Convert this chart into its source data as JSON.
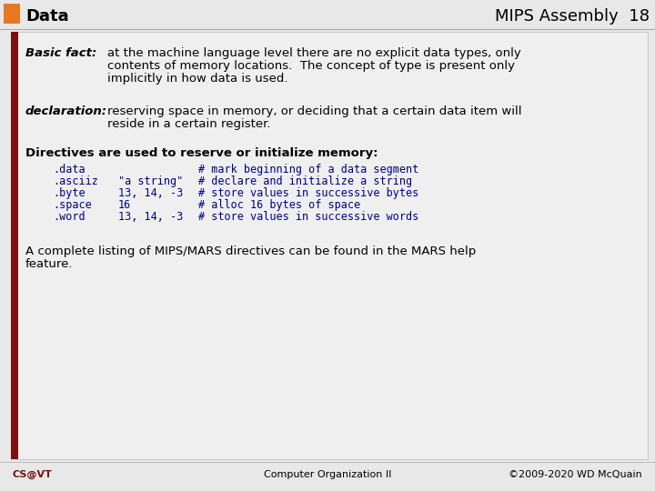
{
  "title_left": "Data",
  "title_right": "MIPS Assembly  18",
  "slide_bg": "#E8E8E8",
  "content_bg": "#F0F0F0",
  "white_box_bg": "#EFEFEF",
  "border_color": "#CCCCCC",
  "left_stripe_color": "#7A1010",
  "orange_square": "#E87722",
  "header_text_color": "#000000",
  "basic_fact_label": "Basic fact:",
  "basic_fact_text_line1": "at the machine language level there are no explicit data types, only",
  "basic_fact_text_line2": "contents of memory locations.  The concept of type is present only",
  "basic_fact_text_line3": "implicitly in how data is used.",
  "declaration_label": "declaration:",
  "declaration_text_line1": "reserving space in memory, or deciding that a certain data item will",
  "declaration_text_line2": "reside in a certain register.",
  "directives_heading": "Directives are used to reserve or initialize memory:",
  "code_color": "#000088",
  "code_lines": [
    [
      ".data",
      "",
      "# mark beginning of a data segment"
    ],
    [
      ".asciiz",
      "\"a string\"",
      "# declare and initialize a string"
    ],
    [
      ".byte",
      "13, 14, -3",
      "# store values in successive bytes"
    ],
    [
      ".space",
      "16",
      "# alloc 16 bytes of space"
    ],
    [
      ".word",
      "13, 14, -3",
      "# store values in successive words"
    ]
  ],
  "complete_text_line1": "A complete listing of MIPS/MARS directives can be found in the MARS help",
  "complete_text_line2": "feature.",
  "footer_left": "CS@VT",
  "footer_center": "Computer Organization II",
  "footer_right": "©2009-2020 WD McQuain",
  "footer_left_color": "#7A1010",
  "text_color": "#000000",
  "title_fontsize": 13,
  "body_fontsize": 9.5,
  "code_fontsize": 8.5,
  "footer_fontsize": 8
}
